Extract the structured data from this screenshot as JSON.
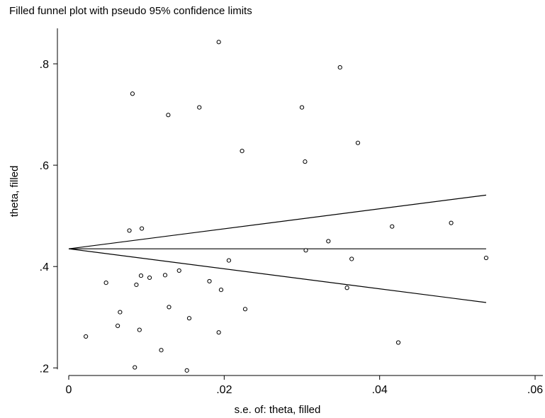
{
  "chart_data": {
    "type": "scatter",
    "title": "Filled funnel plot with pseudo 95% confidence limits",
    "xlabel": "s.e. of: theta, filled",
    "ylabel": "theta, filled",
    "xlim": [
      0,
      0.061
    ],
    "ylim": [
      0.185,
      0.87
    ],
    "x_ticks": [
      0,
      0.02,
      0.04,
      0.06
    ],
    "x_tick_labels": [
      "0",
      ".02",
      ".04",
      ".06"
    ],
    "y_ticks": [
      0.2,
      0.4,
      0.6,
      0.8
    ],
    "y_tick_labels": [
      ".2",
      ".4",
      ".6",
      ".8"
    ],
    "grid": false,
    "reference_lines": {
      "pooled_estimate": 0.435,
      "x_range": [
        0,
        0.0537
      ],
      "lower_limit_at_max_se": 0.329,
      "upper_limit_at_max_se": 0.541
    },
    "points": [
      {
        "x": 0.0193,
        "y": 0.843
      },
      {
        "x": 0.0349,
        "y": 0.793
      },
      {
        "x": 0.0082,
        "y": 0.741
      },
      {
        "x": 0.0128,
        "y": 0.699
      },
      {
        "x": 0.0168,
        "y": 0.714
      },
      {
        "x": 0.03,
        "y": 0.714
      },
      {
        "x": 0.0372,
        "y": 0.644
      },
      {
        "x": 0.0223,
        "y": 0.628
      },
      {
        "x": 0.0304,
        "y": 0.607
      },
      {
        "x": 0.0492,
        "y": 0.486
      },
      {
        "x": 0.0416,
        "y": 0.479
      },
      {
        "x": 0.0094,
        "y": 0.475
      },
      {
        "x": 0.0078,
        "y": 0.471
      },
      {
        "x": 0.0334,
        "y": 0.45
      },
      {
        "x": 0.0305,
        "y": 0.432
      },
      {
        "x": 0.0364,
        "y": 0.415
      },
      {
        "x": 0.0537,
        "y": 0.417
      },
      {
        "x": 0.0206,
        "y": 0.412
      },
      {
        "x": 0.0142,
        "y": 0.392
      },
      {
        "x": 0.0093,
        "y": 0.382
      },
      {
        "x": 0.0124,
        "y": 0.383
      },
      {
        "x": 0.0104,
        "y": 0.378
      },
      {
        "x": 0.0181,
        "y": 0.371
      },
      {
        "x": 0.0048,
        "y": 0.368
      },
      {
        "x": 0.0087,
        "y": 0.364
      },
      {
        "x": 0.0358,
        "y": 0.358
      },
      {
        "x": 0.0196,
        "y": 0.354
      },
      {
        "x": 0.0129,
        "y": 0.32
      },
      {
        "x": 0.0227,
        "y": 0.316
      },
      {
        "x": 0.0066,
        "y": 0.31
      },
      {
        "x": 0.0155,
        "y": 0.298
      },
      {
        "x": 0.0063,
        "y": 0.283
      },
      {
        "x": 0.0091,
        "y": 0.275
      },
      {
        "x": 0.0193,
        "y": 0.27
      },
      {
        "x": 0.0022,
        "y": 0.262
      },
      {
        "x": 0.0424,
        "y": 0.25
      },
      {
        "x": 0.0119,
        "y": 0.235
      },
      {
        "x": 0.0085,
        "y": 0.201
      },
      {
        "x": 0.0152,
        "y": 0.195
      }
    ]
  }
}
